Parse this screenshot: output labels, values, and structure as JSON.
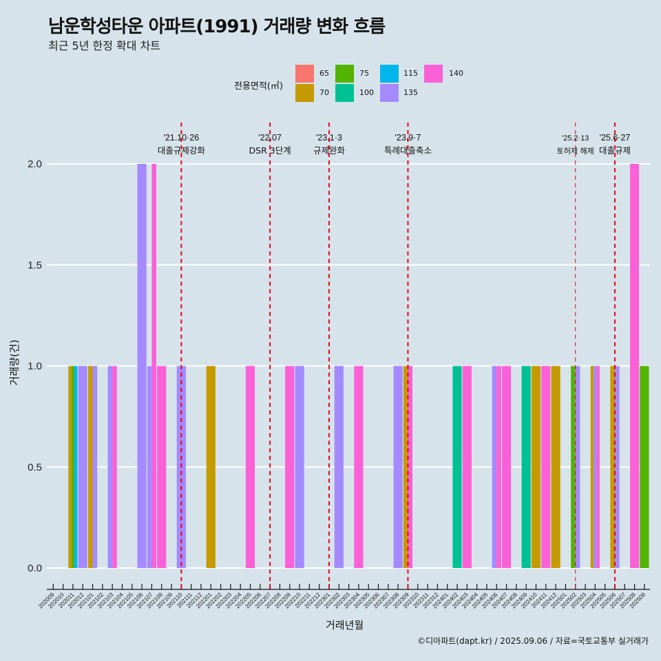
{
  "header": {
    "title": "남운학성타운 아파트(1991) 거래량 변화 흐름",
    "subtitle": "최근 5년 한정 확대 차트"
  },
  "footer": "©디아파트(dapt.kr) / 2025.09.06 / 자료=국토교통부 실거래가",
  "chart_data": {
    "type": "bar",
    "title": "남운학성타운 아파트(1991) 거래량 변화 흐름",
    "subtitle": "최근 5년 한정 확대 차트",
    "xlabel": "거래년월",
    "ylabel": "거래량(건)",
    "ylim": [
      0,
      2
    ],
    "yticks": [
      "0.0",
      "0.5",
      "1.0",
      "1.5",
      "2.0"
    ],
    "ytick_values": [
      0,
      0.5,
      1.0,
      1.5,
      2.0
    ],
    "grid": true,
    "legend": {
      "title": "전용면적(㎡)",
      "placement": "top",
      "entries": [
        {
          "label": "65",
          "color": "#F8766D"
        },
        {
          "label": "70",
          "color": "#C49A00"
        },
        {
          "label": "75",
          "color": "#53B400"
        },
        {
          "label": "100",
          "color": "#00C094"
        },
        {
          "label": "115",
          "color": "#00B6EB"
        },
        {
          "label": "135",
          "color": "#A58AFF"
        },
        {
          "label": "140",
          "color": "#FB61D7"
        }
      ]
    },
    "categories": [
      "202009",
      "202010",
      "202011",
      "202012",
      "202101",
      "202102",
      "202103",
      "202104",
      "202105",
      "202106",
      "202107",
      "202108",
      "202109",
      "202110",
      "202111",
      "202112",
      "202201",
      "202202",
      "202203",
      "202204",
      "202205",
      "202206",
      "202207",
      "202208",
      "202209",
      "202210",
      "202211",
      "202212",
      "202301",
      "202302",
      "202303",
      "202304",
      "202305",
      "202306",
      "202307",
      "202308",
      "202309",
      "202310",
      "202311",
      "202312",
      "202401",
      "202402",
      "202403",
      "202404",
      "202405",
      "202406",
      "202407",
      "202408",
      "202409",
      "202410",
      "202411",
      "202412",
      "202501",
      "202502",
      "202503",
      "202504",
      "202505",
      "202506",
      "202507",
      "202508",
      "202509"
    ],
    "bars": [
      {
        "month": "202011",
        "area": "70",
        "value": 1
      },
      {
        "month": "202011",
        "area": "75",
        "value": 1
      },
      {
        "month": "202011",
        "area": "115",
        "value": 1
      },
      {
        "month": "202012",
        "area": "135",
        "value": 1
      },
      {
        "month": "202101",
        "area": "70",
        "value": 1
      },
      {
        "month": "202101",
        "area": "135",
        "value": 1
      },
      {
        "month": "202103",
        "area": "135",
        "value": 1
      },
      {
        "month": "202103",
        "area": "140",
        "value": 1
      },
      {
        "month": "202106",
        "area": "135",
        "value": 2
      },
      {
        "month": "202107",
        "area": "135",
        "value": 1
      },
      {
        "month": "202107",
        "area": "140",
        "value": 2
      },
      {
        "month": "202108",
        "area": "140",
        "value": 1
      },
      {
        "month": "202110",
        "area": "135",
        "value": 1
      },
      {
        "month": "202201",
        "area": "70",
        "value": 1
      },
      {
        "month": "202205",
        "area": "140",
        "value": 1
      },
      {
        "month": "202209",
        "area": "140",
        "value": 1
      },
      {
        "month": "202210",
        "area": "135",
        "value": 1
      },
      {
        "month": "202302",
        "area": "135",
        "value": 1
      },
      {
        "month": "202304",
        "area": "140",
        "value": 1
      },
      {
        "month": "202308",
        "area": "135",
        "value": 1
      },
      {
        "month": "202309",
        "area": "70",
        "value": 1
      },
      {
        "month": "202309",
        "area": "140",
        "value": 1
      },
      {
        "month": "202402",
        "area": "100",
        "value": 1
      },
      {
        "month": "202403",
        "area": "140",
        "value": 1
      },
      {
        "month": "202406",
        "area": "135",
        "value": 1
      },
      {
        "month": "202406",
        "area": "140",
        "value": 1
      },
      {
        "month": "202407",
        "area": "140",
        "value": 1
      },
      {
        "month": "202409",
        "area": "100",
        "value": 1
      },
      {
        "month": "202410",
        "area": "70",
        "value": 1
      },
      {
        "month": "202411",
        "area": "140",
        "value": 1
      },
      {
        "month": "202412",
        "area": "70",
        "value": 1
      },
      {
        "month": "202502",
        "area": "75",
        "value": 1
      },
      {
        "month": "202502",
        "area": "135",
        "value": 1
      },
      {
        "month": "202504",
        "area": "70",
        "value": 1
      },
      {
        "month": "202504",
        "area": "135",
        "value": 1
      },
      {
        "month": "202504",
        "area": "140",
        "value": 1
      },
      {
        "month": "202506",
        "area": "70",
        "value": 1
      },
      {
        "month": "202506",
        "area": "135",
        "value": 1
      },
      {
        "month": "202508",
        "area": "140",
        "value": 2
      },
      {
        "month": "202509",
        "area": "75",
        "value": 1
      }
    ],
    "annotations": [
      {
        "month": "202110",
        "date": "'21.10·26",
        "label": "대출규제강화",
        "emphasis": "strong"
      },
      {
        "month": "202207",
        "date": "'22.07",
        "label": "DSR 3단계",
        "emphasis": "strong"
      },
      {
        "month": "202301",
        "date": "'23.1·3",
        "label": "규제완화",
        "emphasis": "strong"
      },
      {
        "month": "202309",
        "date": "'23.9·7",
        "label": "특례대출축소",
        "emphasis": "strong"
      },
      {
        "month": "202502",
        "date": "'25.2·13",
        "label": "토허제 해제",
        "emphasis": "light"
      },
      {
        "month": "202506",
        "date": "'25.6·27",
        "label": "대출규제",
        "emphasis": "strong"
      }
    ],
    "line_color": "#E8001C"
  }
}
